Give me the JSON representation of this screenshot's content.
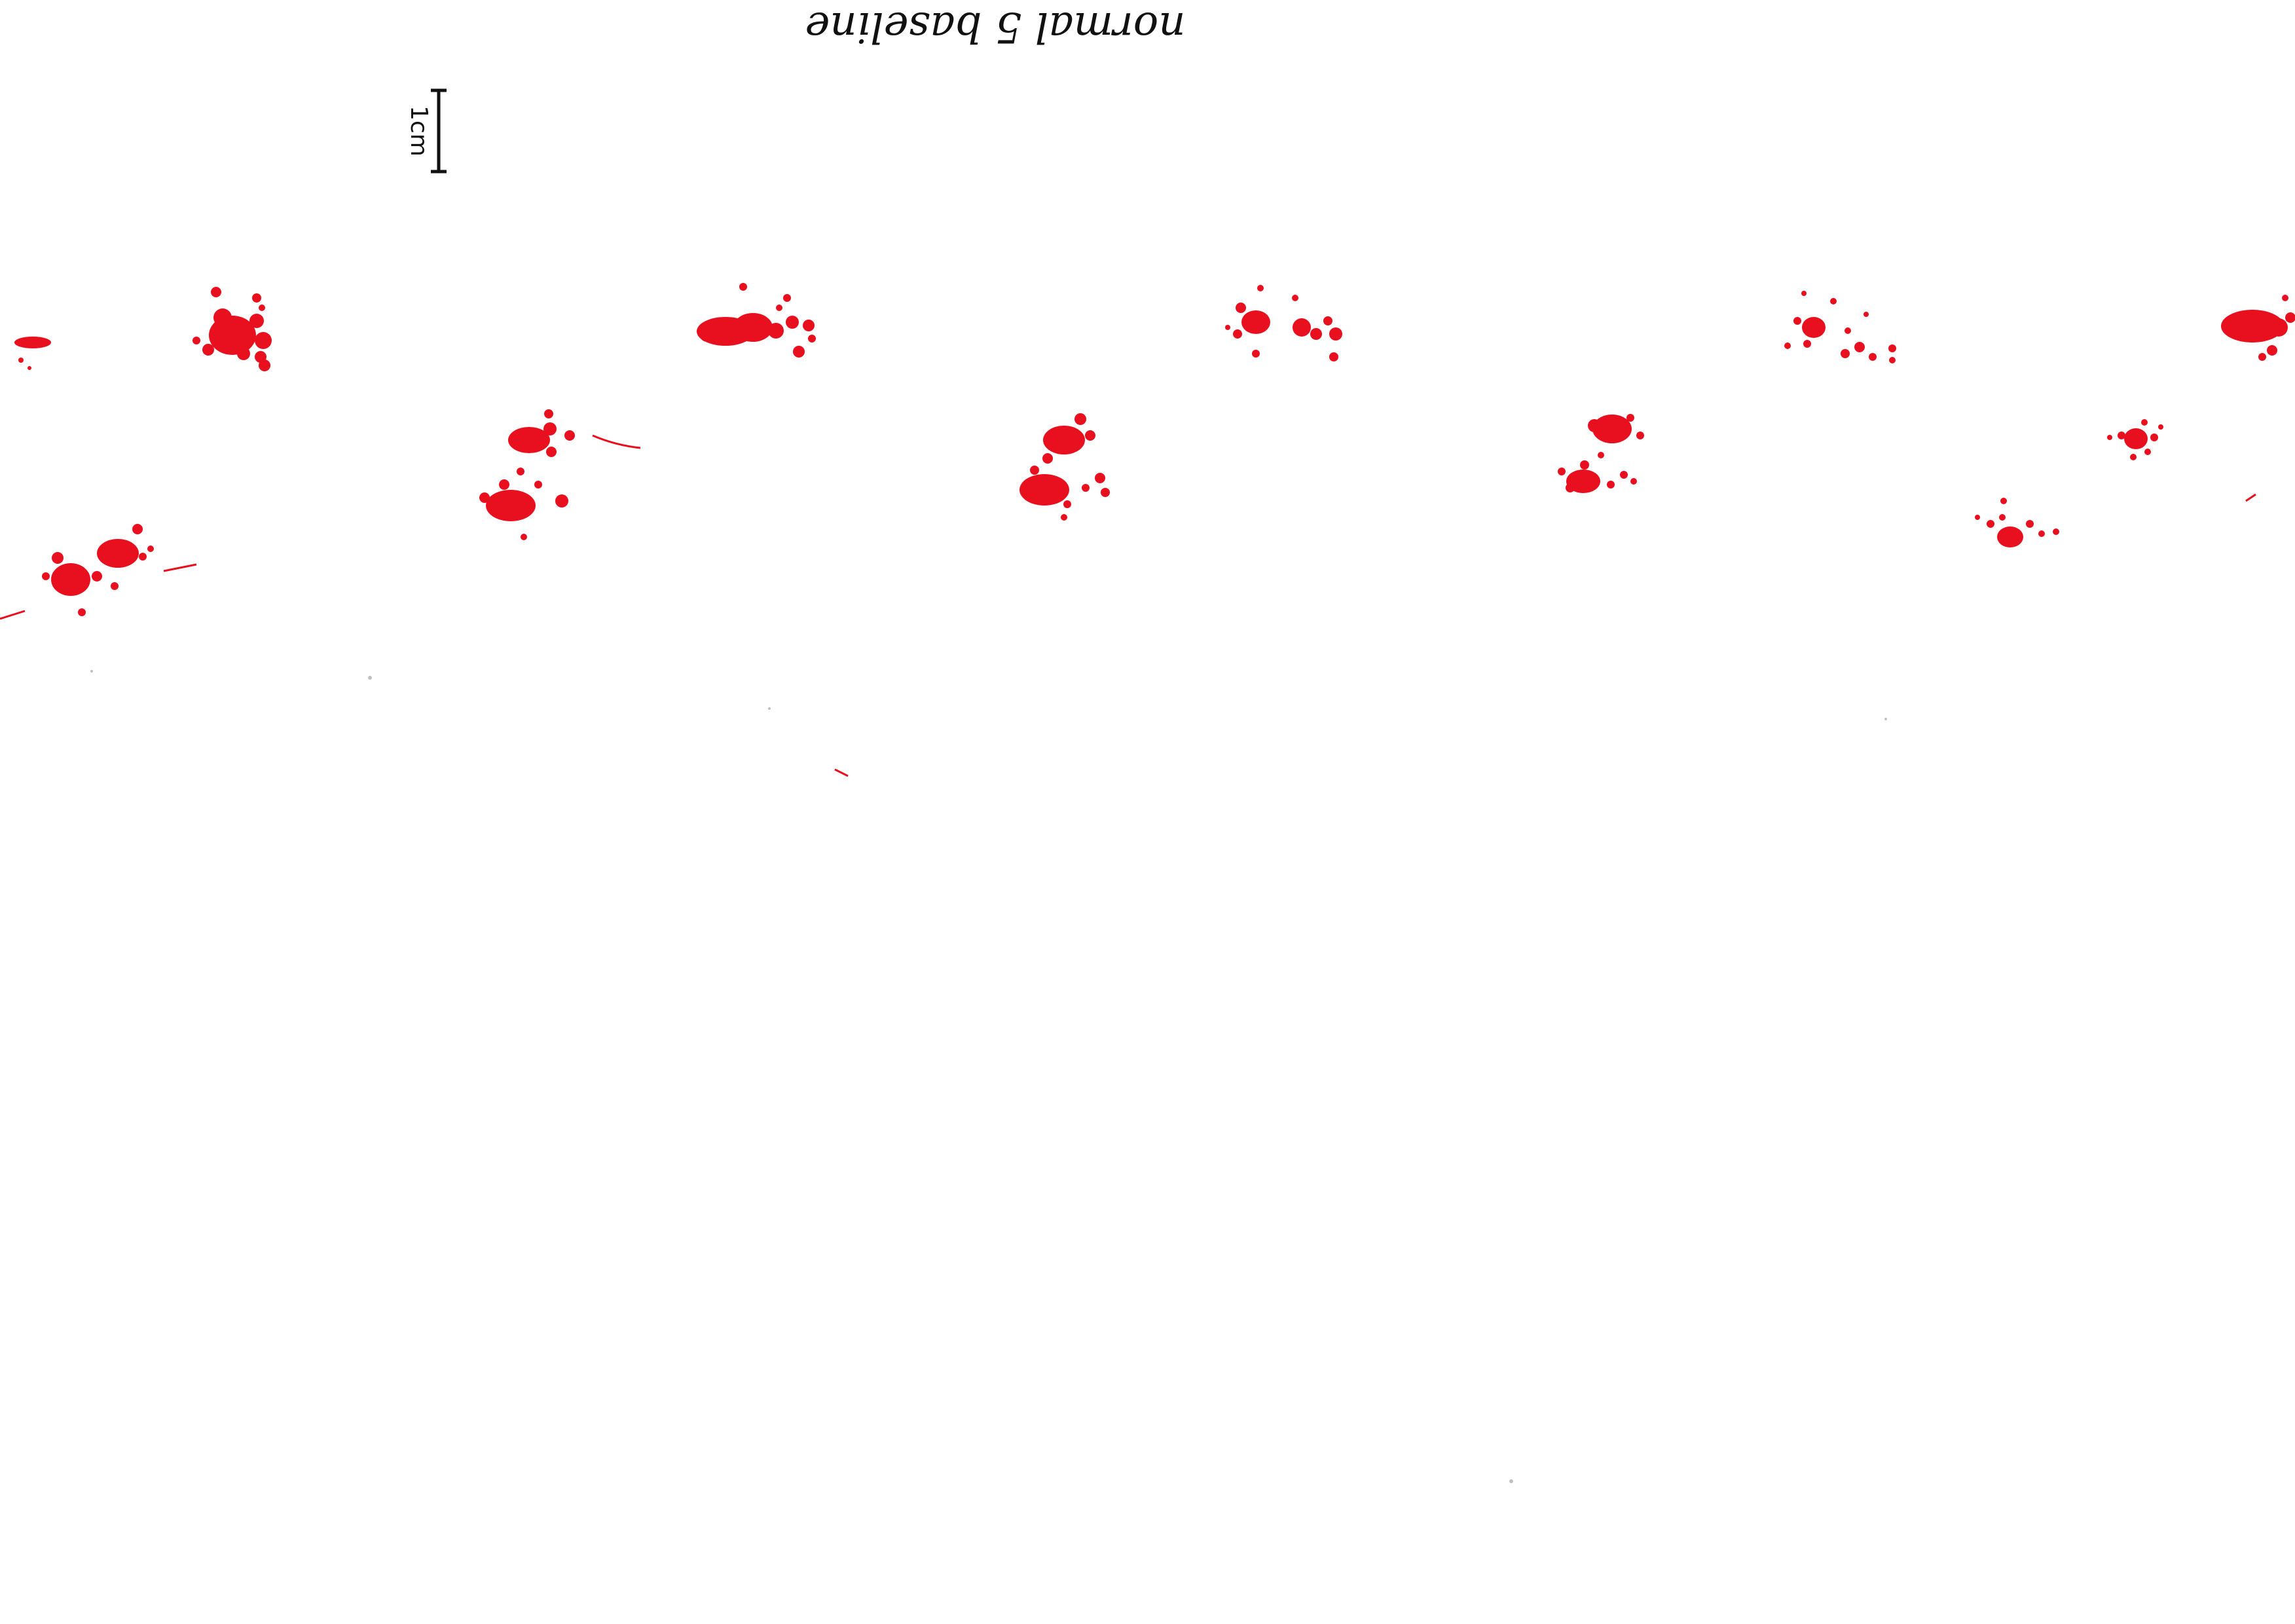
{
  "document": {
    "handwritten_label": "normal 5 baseline",
    "handwritten_label_orientation": "upside-down",
    "scale_bar_label": "1cm",
    "scale_bar_label_orientation": "rotated-90"
  },
  "colors": {
    "paper": "#ffffff",
    "ink": "#111111",
    "footprint_ink": "#e8101e",
    "footprint_ink_secondary": "#e0185a"
  },
  "footprints": {
    "row_upper_count": 6,
    "row_lower_count": 6
  }
}
